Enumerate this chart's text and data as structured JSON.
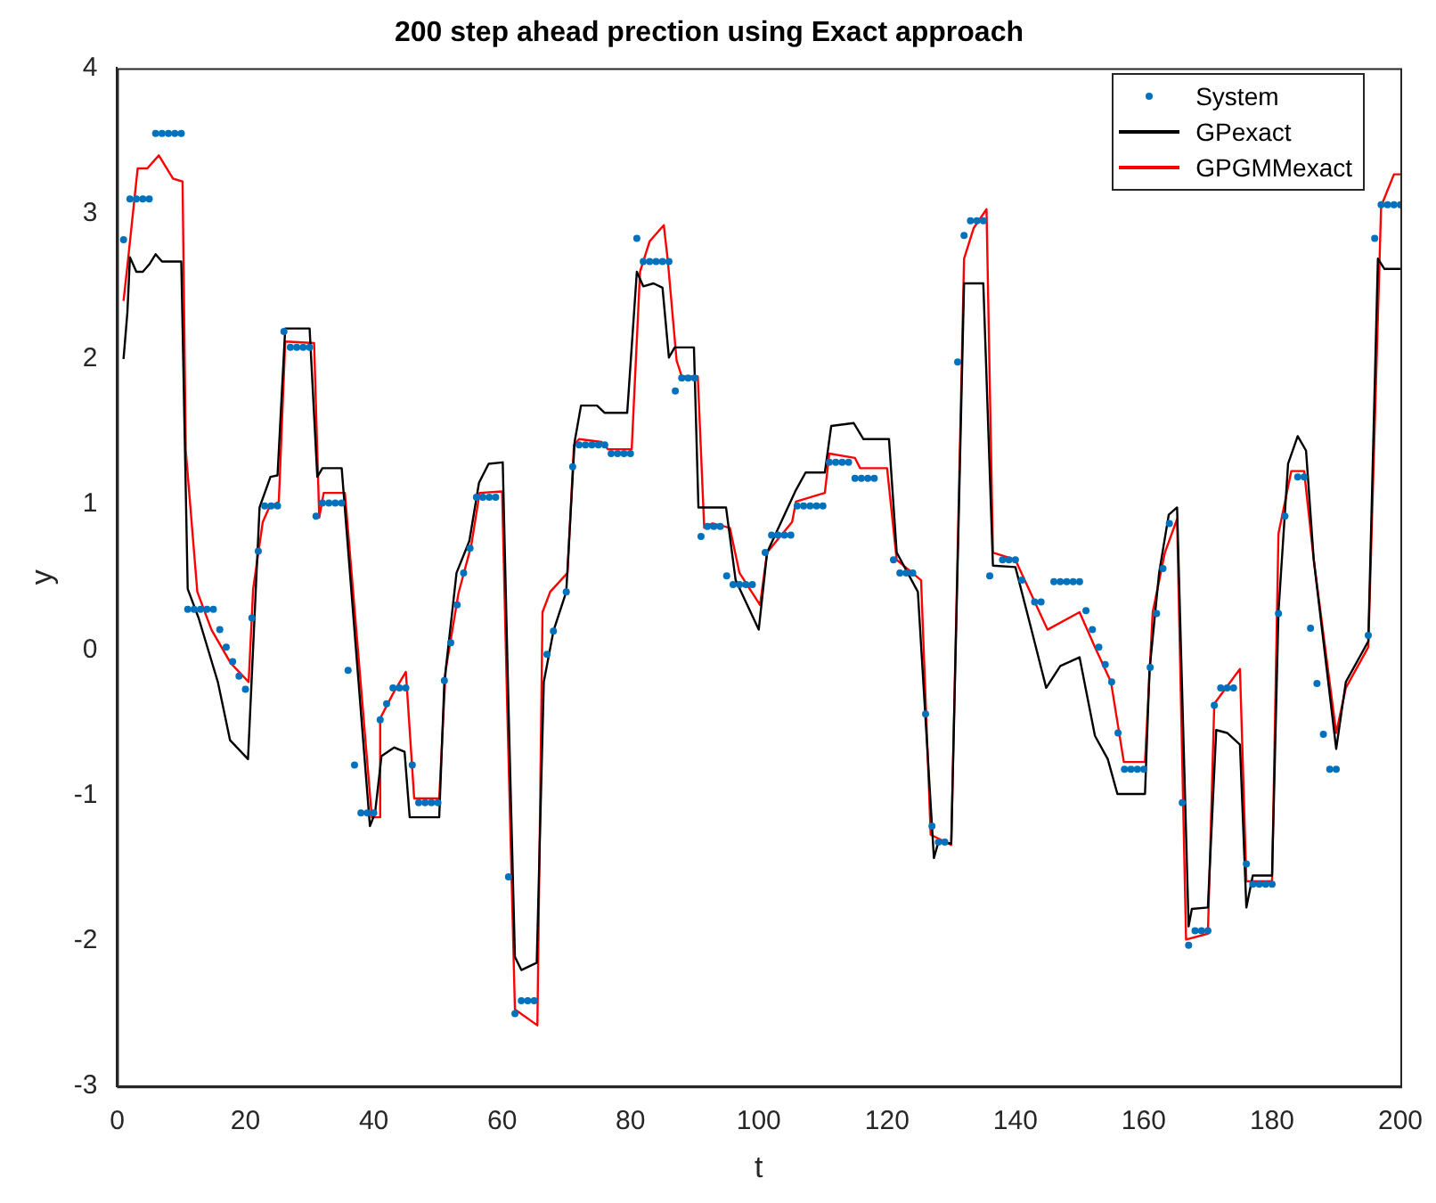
{
  "chart_data": {
    "type": "line",
    "title": "200 step ahead prection using Exact approach",
    "xlabel": "t",
    "ylabel": "y",
    "xlim": [
      0,
      200
    ],
    "ylim": [
      -3,
      4
    ],
    "xticks": [
      0,
      20,
      40,
      60,
      80,
      100,
      120,
      140,
      160,
      180,
      200
    ],
    "yticks": [
      -3,
      -2,
      -1,
      0,
      1,
      2,
      3,
      4
    ],
    "grid": false,
    "legend": "top right",
    "series": [
      {
        "name": "System",
        "type": "scatter",
        "marker": "circle",
        "color": "#0072bd",
        "x": [
          1,
          2,
          3,
          4,
          5,
          6,
          7,
          8,
          9,
          10,
          11,
          12,
          13,
          14,
          15,
          16,
          17,
          18,
          19,
          20,
          21,
          22,
          23,
          24,
          25,
          26,
          27,
          28,
          29,
          30,
          31,
          32,
          33,
          34,
          35,
          36,
          37,
          38,
          39,
          40,
          41,
          42,
          43,
          44,
          45,
          46,
          47,
          48,
          49,
          50,
          51,
          52,
          53,
          54,
          55,
          56,
          57,
          58,
          59,
          61,
          62,
          63,
          64,
          65,
          67,
          68,
          70,
          71,
          72,
          73,
          74,
          75,
          76,
          77,
          78,
          79,
          80,
          81,
          82,
          83,
          84,
          85,
          86,
          87,
          88,
          89,
          90,
          91,
          92,
          93,
          94,
          95,
          96,
          97,
          98,
          99,
          101,
          102,
          103,
          104,
          105,
          106,
          107,
          108,
          109,
          110,
          111,
          112,
          113,
          114,
          115,
          116,
          117,
          118,
          121,
          122,
          123,
          124,
          126,
          127,
          128,
          129,
          131,
          132,
          133,
          134,
          135,
          136,
          138,
          139,
          140,
          141,
          143,
          144,
          146,
          147,
          148,
          149,
          150,
          151,
          152,
          153,
          154,
          155,
          156,
          157,
          158,
          159,
          160,
          161,
          162,
          163,
          164,
          166,
          167,
          168,
          169,
          170,
          171,
          172,
          173,
          174,
          176,
          177,
          178,
          179,
          180,
          181,
          182,
          184,
          185,
          186,
          187,
          188,
          189,
          190,
          195,
          196,
          197,
          198,
          199,
          200
        ],
        "values": [
          2.82,
          3.1,
          3.1,
          3.1,
          3.1,
          3.55,
          3.55,
          3.55,
          3.55,
          3.55,
          0.28,
          0.28,
          0.28,
          0.28,
          0.28,
          0.14,
          0.02,
          -0.08,
          -0.18,
          -0.27,
          0.22,
          0.68,
          0.99,
          0.99,
          0.99,
          2.19,
          2.08,
          2.08,
          2.08,
          2.08,
          0.92,
          1.01,
          1.01,
          1.01,
          1.01,
          -0.14,
          -0.79,
          -1.12,
          -1.12,
          -1.12,
          -0.48,
          -0.37,
          -0.26,
          -0.26,
          -0.26,
          -0.79,
          -1.05,
          -1.05,
          -1.05,
          -1.05,
          -0.21,
          0.05,
          0.31,
          0.53,
          0.7,
          1.05,
          1.05,
          1.05,
          1.05,
          -1.56,
          -2.5,
          -2.41,
          -2.41,
          -2.41,
          -0.03,
          0.13,
          0.4,
          1.26,
          1.41,
          1.41,
          1.41,
          1.41,
          1.41,
          1.35,
          1.35,
          1.35,
          1.35,
          2.83,
          2.67,
          2.67,
          2.67,
          2.67,
          2.67,
          1.78,
          1.87,
          1.87,
          1.87,
          0.78,
          0.85,
          0.85,
          0.85,
          0.51,
          0.45,
          0.45,
          0.45,
          0.45,
          0.67,
          0.79,
          0.79,
          0.79,
          0.79,
          0.99,
          0.99,
          0.99,
          0.99,
          0.99,
          1.29,
          1.29,
          1.29,
          1.29,
          1.18,
          1.18,
          1.18,
          1.18,
          0.62,
          0.53,
          0.53,
          0.53,
          -0.44,
          -1.21,
          -1.32,
          -1.32,
          1.98,
          2.85,
          2.95,
          2.95,
          2.95,
          0.51,
          0.62,
          0.62,
          0.62,
          0.48,
          0.33,
          0.33,
          0.47,
          0.47,
          0.47,
          0.47,
          0.47,
          0.27,
          0.14,
          0.02,
          -0.1,
          -0.22,
          -0.57,
          -0.82,
          -0.82,
          -0.82,
          -0.82,
          -0.12,
          0.25,
          0.56,
          0.87,
          -1.05,
          -2.03,
          -1.93,
          -1.93,
          -1.93,
          -0.38,
          -0.26,
          -0.26,
          -0.26,
          -1.47,
          -1.61,
          -1.61,
          -1.61,
          -1.61,
          0.25,
          0.92,
          1.19,
          1.19,
          0.15,
          -0.23,
          -0.58,
          -0.82,
          -0.82,
          0.1,
          2.83,
          3.06,
          3.06,
          3.06,
          3.06
        ]
      },
      {
        "name": "GPexact",
        "type": "line",
        "color": "#000000",
        "x": [
          1,
          1.6,
          2,
          3,
          4,
          5,
          6,
          7,
          10,
          11,
          12.7,
          15.7,
          17.6,
          20.4,
          22.2,
          23.9,
          25,
          26.2,
          30,
          31.2,
          32,
          35,
          39.4,
          40.2,
          41.2,
          43.2,
          44.8,
          45.6,
          50.2,
          51,
          52.9,
          54.9,
          56.4,
          57.9,
          60.1,
          61,
          62,
          63,
          65.4,
          66.5,
          68,
          70,
          71.3,
          72.3,
          74.8,
          76,
          79.5,
          81,
          82,
          83.6,
          85,
          86,
          86.9,
          89.9,
          90.6,
          94.9,
          96.4,
          100,
          101.3,
          105.8,
          107.3,
          110.3,
          111.3,
          114.8,
          116.3,
          120.3,
          121.5,
          124.8,
          127.3,
          128,
          130,
          132,
          135,
          136.5,
          140,
          142.5,
          144.8,
          147,
          150,
          152.4,
          154.4,
          155.9,
          160.2,
          160.9,
          162.4,
          163.9,
          165.2,
          167,
          167.5,
          170,
          171.3,
          173,
          175,
          176,
          177,
          180,
          181,
          182.5,
          184,
          185.3,
          186.5,
          190,
          191.5,
          195,
          196.5,
          197.5,
          200
        ],
        "values": [
          2.0,
          2.32,
          2.7,
          2.6,
          2.6,
          2.65,
          2.72,
          2.67,
          2.67,
          0.42,
          0.22,
          -0.22,
          -0.62,
          -0.75,
          0.98,
          1.19,
          1.2,
          2.21,
          2.21,
          1.19,
          1.25,
          1.25,
          -1.21,
          -1.12,
          -0.73,
          -0.67,
          -0.7,
          -1.15,
          -1.15,
          -0.22,
          0.53,
          0.75,
          1.15,
          1.28,
          1.29,
          -0.39,
          -2.11,
          -2.2,
          -2.15,
          -0.22,
          0.13,
          0.4,
          1.43,
          1.68,
          1.68,
          1.63,
          1.63,
          2.6,
          2.5,
          2.52,
          2.49,
          2.01,
          2.08,
          2.08,
          0.98,
          0.98,
          0.48,
          0.14,
          0.67,
          1.1,
          1.22,
          1.22,
          1.54,
          1.56,
          1.45,
          1.45,
          0.67,
          0.4,
          -1.43,
          -1.32,
          -1.33,
          2.52,
          2.52,
          0.58,
          0.57,
          0.14,
          -0.26,
          -0.11,
          -0.05,
          -0.59,
          -0.75,
          -0.99,
          -0.99,
          -0.14,
          0.53,
          0.93,
          0.98,
          -1.9,
          -1.78,
          -1.77,
          -0.55,
          -0.57,
          -0.65,
          -1.77,
          -1.55,
          -1.55,
          0.26,
          1.28,
          1.47,
          1.37,
          0.62,
          -0.68,
          -0.22,
          0.06,
          2.69,
          2.62,
          2.62
        ]
      },
      {
        "name": "GPGMMexact",
        "type": "line",
        "color": "#ff0000",
        "x": [
          1,
          1.6,
          3.2,
          4.7,
          6.5,
          8.7,
          10.2,
          10.7,
          12.5,
          14.7,
          17.7,
          20.5,
          21.2,
          22.7,
          23.7,
          25.2,
          26.2,
          30.7,
          31.5,
          32.2,
          35.5,
          39.7,
          40.9,
          41,
          43,
          45,
          46.3,
          50.2,
          51.2,
          53.2,
          55.2,
          56.5,
          60,
          60.8,
          62,
          65.5,
          66.3,
          67.5,
          70.2,
          71.2,
          72,
          75.5,
          76.5,
          80.2,
          81.5,
          83,
          85.2,
          85.8,
          87.2,
          88,
          90.5,
          91.5,
          92.8,
          95.5,
          97,
          100.2,
          101.3,
          105.2,
          105.8,
          110.3,
          111,
          115,
          115.8,
          120,
          121.5,
          125.3,
          126.8,
          130,
          132,
          133.5,
          135.5,
          136.5,
          140,
          145,
          150,
          152.4,
          154.9,
          156.9,
          160.2,
          161.4,
          163.3,
          165.2,
          166.6,
          170,
          171,
          175,
          176,
          180,
          181,
          183,
          185,
          186.5,
          190,
          191.5,
          195,
          197,
          199,
          200
        ],
        "values": [
          2.4,
          2.64,
          3.31,
          3.31,
          3.4,
          3.24,
          3.22,
          1.37,
          0.4,
          0.14,
          -0.09,
          -0.22,
          0.42,
          0.88,
          0.98,
          1.02,
          2.12,
          2.11,
          0.91,
          1.08,
          1.08,
          -1.15,
          -1.15,
          -0.47,
          -0.3,
          -0.15,
          -1.02,
          -1.02,
          -0.14,
          0.39,
          0.72,
          1.08,
          1.09,
          -0.39,
          -2.47,
          -2.58,
          0.26,
          0.4,
          0.53,
          1.41,
          1.45,
          1.43,
          1.38,
          1.38,
          2.6,
          2.81,
          2.92,
          2.69,
          1.99,
          1.88,
          1.88,
          0.84,
          0.87,
          0.84,
          0.53,
          0.31,
          0.67,
          0.88,
          1.02,
          1.08,
          1.35,
          1.32,
          1.25,
          1.25,
          0.62,
          0.48,
          -1.27,
          -1.34,
          2.69,
          2.9,
          3.03,
          0.67,
          0.62,
          0.14,
          0.26,
          0.02,
          -0.22,
          -0.77,
          -0.77,
          0.26,
          0.67,
          0.9,
          -1.99,
          -1.95,
          -0.37,
          -0.13,
          -1.59,
          -1.59,
          0.8,
          1.23,
          1.23,
          0.62,
          -0.57,
          -0.26,
          0.02,
          3.05,
          3.27,
          3.27
        ]
      }
    ]
  }
}
